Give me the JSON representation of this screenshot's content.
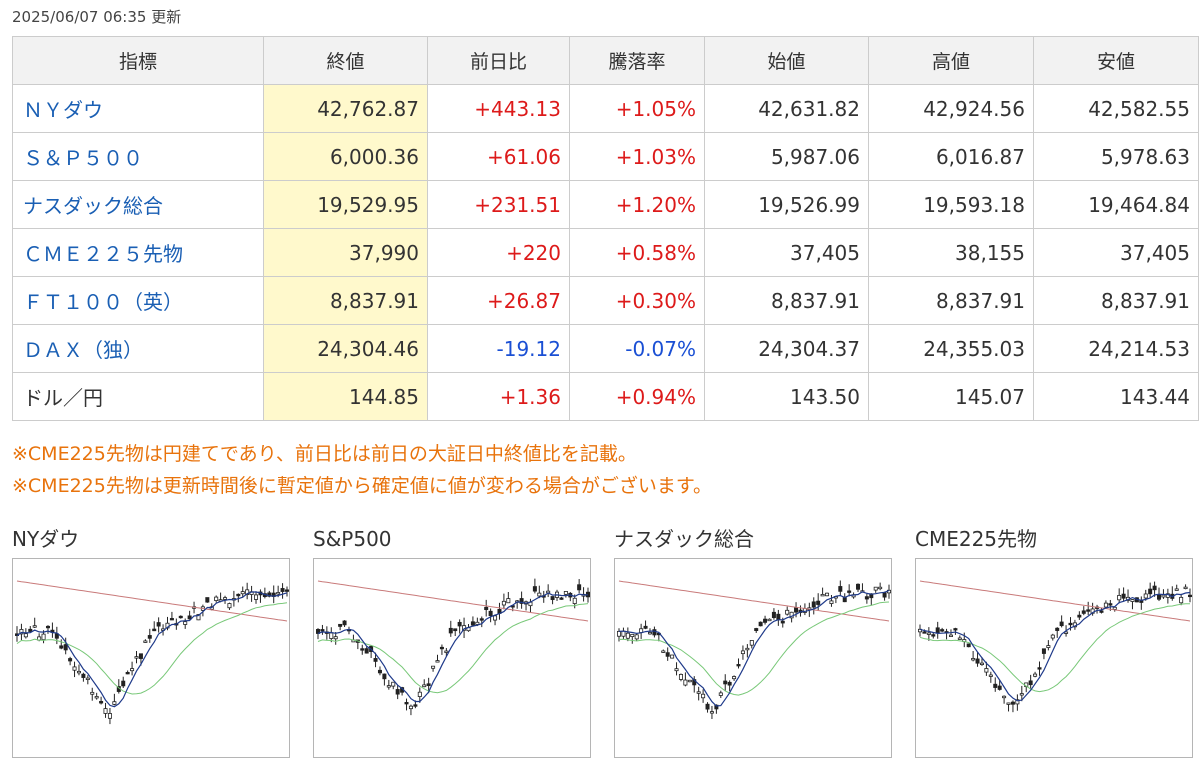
{
  "updated": "2025/06/07 06:35 更新",
  "headers": [
    "指標",
    "終値",
    "前日比",
    "騰落率",
    "始値",
    "高値",
    "安値"
  ],
  "rows": [
    {
      "name": "ＮＹダウ",
      "link": true,
      "close": "42,762.87",
      "change": "+443.13",
      "rate": "+1.05%",
      "open": "42,631.82",
      "high": "42,924.56",
      "low": "42,582.55",
      "dir": "pos"
    },
    {
      "name": "Ｓ＆Ｐ５００",
      "link": true,
      "close": "6,000.36",
      "change": "+61.06",
      "rate": "+1.03%",
      "open": "5,987.06",
      "high": "6,016.87",
      "low": "5,978.63",
      "dir": "pos"
    },
    {
      "name": "ナスダック総合",
      "link": true,
      "close": "19,529.95",
      "change": "+231.51",
      "rate": "+1.20%",
      "open": "19,526.99",
      "high": "19,593.18",
      "low": "19,464.84",
      "dir": "pos"
    },
    {
      "name": "ＣＭＥ２２５先物",
      "link": true,
      "close": "37,990",
      "change": "+220",
      "rate": "+0.58%",
      "open": "37,405",
      "high": "38,155",
      "low": "37,405",
      "dir": "pos"
    },
    {
      "name": "ＦＴ１００（英）",
      "link": true,
      "close": "8,837.91",
      "change": "+26.87",
      "rate": "+0.30%",
      "open": "8,837.91",
      "high": "8,837.91",
      "low": "8,837.91",
      "dir": "pos"
    },
    {
      "name": "ＤＡＸ（独）",
      "link": true,
      "close": "24,304.46",
      "change": "-19.12",
      "rate": "-0.07%",
      "open": "24,304.37",
      "high": "24,355.03",
      "low": "24,214.53",
      "dir": "neg"
    },
    {
      "name": "ドル／円",
      "link": false,
      "close": "144.85",
      "change": "+1.36",
      "rate": "+0.94%",
      "open": "143.50",
      "high": "145.07",
      "low": "143.44",
      "dir": "pos"
    }
  ],
  "notes": [
    "※CME225先物は円建てであり、前日比は前日の大証日中終値比を記載。",
    "※CME225先物は更新時間後に暫定値から確定値に値が変わる場合がございます。"
  ],
  "charts": [
    {
      "title": "NYダウ"
    },
    {
      "title": "S&P500"
    },
    {
      "title": "ナスダック総合"
    },
    {
      "title": "CME225先物"
    }
  ],
  "colors": {
    "positive": "#dd1a1a",
    "negative": "#1a4fd4",
    "link": "#1a5fb4",
    "note": "#e8730c",
    "close_bg": "#fff9cc",
    "ma_short": "#1f3a8a",
    "ma_mid": "#78c878",
    "ma_long": "#c97a7a"
  }
}
